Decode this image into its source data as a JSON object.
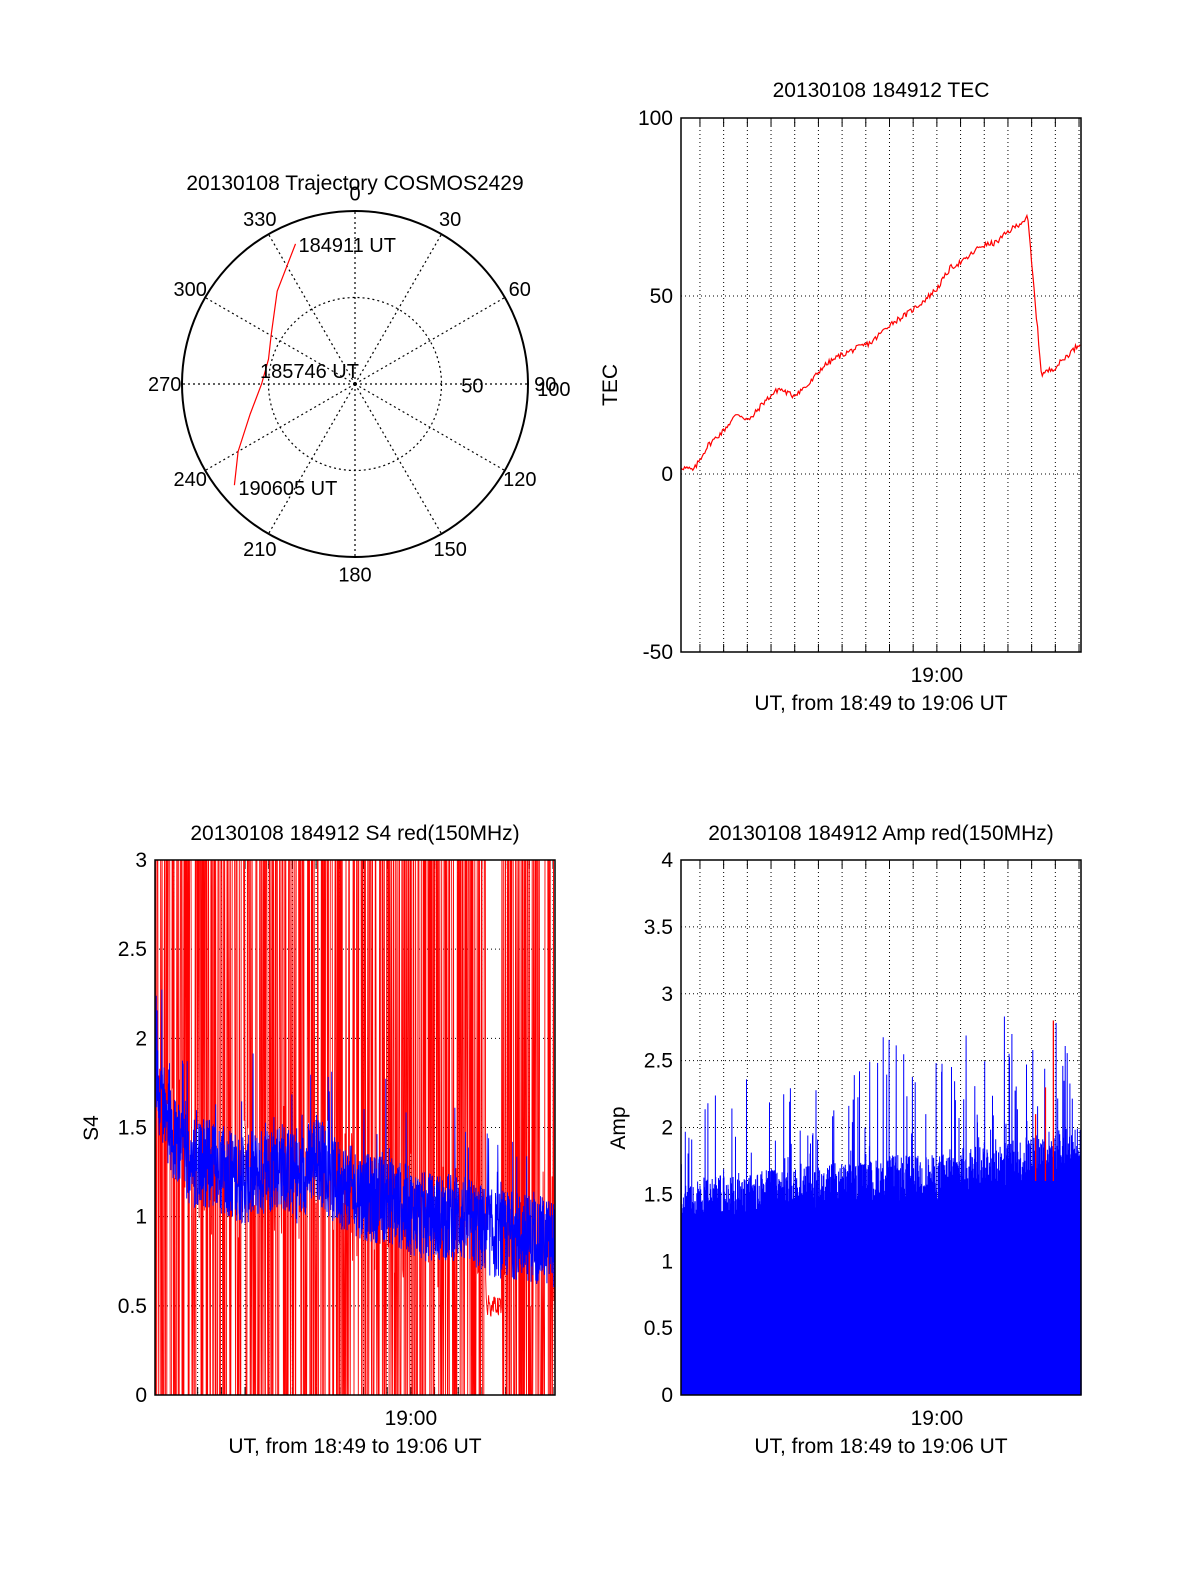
{
  "chart_data": [
    {
      "type": "polar",
      "title": "20130108 Trajectory COSMOS2429",
      "azimuth_labels": [
        "0",
        "30",
        "60",
        "90",
        "120",
        "150",
        "180",
        "210",
        "240",
        "270",
        "300",
        "330"
      ],
      "azimuth_values": [
        0,
        30,
        60,
        90,
        120,
        150,
        180,
        210,
        240,
        270,
        300,
        330
      ],
      "radial_labels": [
        "50",
        "100"
      ],
      "rlim": [
        0,
        100
      ],
      "grid": true,
      "series": [
        {
          "color": "#ff0000",
          "points": [
            {
              "az": 337,
              "r": 88
            },
            {
              "az": 320,
              "r": 70
            },
            {
              "az": 300,
              "r": 56
            },
            {
              "az": 286,
              "r": 52
            },
            {
              "az": 270,
              "r": 54
            },
            {
              "az": 254,
              "r": 63
            },
            {
              "az": 240,
              "r": 78
            },
            {
              "az": 230,
              "r": 91
            }
          ]
        }
      ],
      "annotations": [
        {
          "text": "184911 UT",
          "at": "start"
        },
        {
          "text": "185746 UT",
          "at": "center"
        },
        {
          "text": "190605 UT",
          "at": "end"
        }
      ]
    },
    {
      "type": "line",
      "title": "20130108 184912 TEC",
      "xlabel": "UT, from 18:49 to 19:06 UT",
      "ylabel": "TEC",
      "xlim": [
        "18:49:12",
        "19:06:05"
      ],
      "ylim": [
        -50,
        100
      ],
      "yticks": [
        -50,
        0,
        50,
        100
      ],
      "xticks": [
        {
          "t": "19:00:00",
          "label": "19:00"
        }
      ],
      "grid": true,
      "series": [
        {
          "color": "#ff0000",
          "x": [
            "18:49:12",
            "18:49:44",
            "18:50:20",
            "18:50:58",
            "18:51:35",
            "18:52:05",
            "18:52:40",
            "18:53:20",
            "18:53:55",
            "18:54:35",
            "18:55:10",
            "18:55:50",
            "18:56:30",
            "18:57:15",
            "18:58:00",
            "18:58:45",
            "18:59:20",
            "19:00:00",
            "19:00:35",
            "19:01:10",
            "19:01:50",
            "19:02:30",
            "19:03:00",
            "19:03:25",
            "19:03:50",
            "19:04:25",
            "19:05:00",
            "19:06:05"
          ],
          "y": [
            2,
            1,
            8,
            12,
            17,
            15,
            20,
            24,
            22,
            25,
            30,
            33,
            35,
            37,
            42,
            45,
            48,
            52,
            58,
            60,
            64,
            65,
            68,
            70,
            72,
            28,
            30,
            37
          ]
        }
      ]
    },
    {
      "type": "line",
      "title": "20130108 184912 S4 red(150MHz)",
      "xlabel": "UT, from 18:49 to 19:06 UT",
      "ylabel": "S4",
      "xlim": [
        "18:49:12",
        "19:06:05"
      ],
      "ylim": [
        0,
        3
      ],
      "yticks": [
        0,
        0.5,
        1,
        1.5,
        2,
        2.5,
        3
      ],
      "xticks": [
        {
          "t": "19:00:00",
          "label": "19:00"
        }
      ],
      "grid": true,
      "series": [
        {
          "color": "#ff0000",
          "description_values": "red series oscillates densely between 0 and 3 (off-scale spikes)",
          "x": [
            "18:49:12",
            "18:50:00",
            "18:51:00",
            "18:52:00",
            "18:53:00",
            "18:54:00",
            "18:55:00",
            "18:56:00",
            "18:57:00",
            "18:58:00",
            "18:59:00",
            "19:00:00",
            "19:01:00",
            "19:02:00",
            "19:03:00",
            "19:03:30",
            "19:04:00",
            "19:05:00",
            "19:06:05"
          ],
          "y": [
            1.4,
            3,
            0,
            3,
            0,
            3,
            0,
            3,
            0,
            3,
            0,
            3,
            0,
            3,
            1.0,
            0.5,
            3,
            0,
            3
          ]
        },
        {
          "color": "#0000ff",
          "x": [
            "18:49:12",
            "18:49:40",
            "18:50:10",
            "18:50:45",
            "18:51:30",
            "18:52:15",
            "18:53:00",
            "18:53:45",
            "18:54:30",
            "18:55:15",
            "18:56:00",
            "18:56:45",
            "18:57:30",
            "18:58:15",
            "18:59:00",
            "18:59:45",
            "19:00:30",
            "19:01:15",
            "19:02:00",
            "19:02:45",
            "19:03:30",
            "19:04:15",
            "19:05:00",
            "19:06:05"
          ],
          "y": [
            1.8,
            1.55,
            1.4,
            1.3,
            1.3,
            1.25,
            1.2,
            1.25,
            1.3,
            1.2,
            1.35,
            1.2,
            1.15,
            1.1,
            1.1,
            1.05,
            1.0,
            1.0,
            1.0,
            0.95,
            0.9,
            0.9,
            0.88,
            0.85
          ]
        }
      ]
    },
    {
      "type": "bar",
      "title": "20130108 184912 Amp red(150MHz)",
      "xlabel": "UT, from 18:49 to 19:06 UT",
      "ylabel": "Amp",
      "xlim": [
        "18:49:12",
        "19:06:05"
      ],
      "ylim": [
        0,
        4
      ],
      "yticks": [
        0,
        0.5,
        1,
        1.5,
        2,
        2.5,
        3,
        3.5,
        4
      ],
      "xticks": [
        {
          "t": "19:00:00",
          "label": "19:00"
        }
      ],
      "grid": true,
      "series": [
        {
          "color": "#0000ff",
          "x": [
            "18:49:12",
            "18:50:00",
            "18:51:00",
            "18:52:00",
            "18:53:00",
            "18:54:00",
            "18:55:00",
            "18:56:00",
            "18:57:00",
            "18:58:00",
            "18:59:00",
            "19:00:00",
            "19:01:00",
            "19:02:00",
            "19:03:00",
            "19:04:00",
            "19:05:00",
            "19:06:05"
          ],
          "base": [
            1.3,
            1.4,
            1.4,
            1.4,
            1.45,
            1.45,
            1.5,
            1.5,
            1.5,
            1.55,
            1.55,
            1.55,
            1.6,
            1.65,
            1.65,
            1.7,
            1.75,
            1.75
          ],
          "peak": [
            2.4,
            2.2,
            2.3,
            2.4,
            2.3,
            2.5,
            2.4,
            2.4,
            2.5,
            2.85,
            2.4,
            2.6,
            2.7,
            2.8,
            2.95,
            2.8,
            2.9,
            2.7
          ]
        },
        {
          "color": "#ff0000",
          "x": [
            "19:04:10",
            "19:04:35",
            "19:04:55"
          ],
          "y": [
            2.1,
            2.3,
            2.8
          ]
        }
      ]
    }
  ]
}
